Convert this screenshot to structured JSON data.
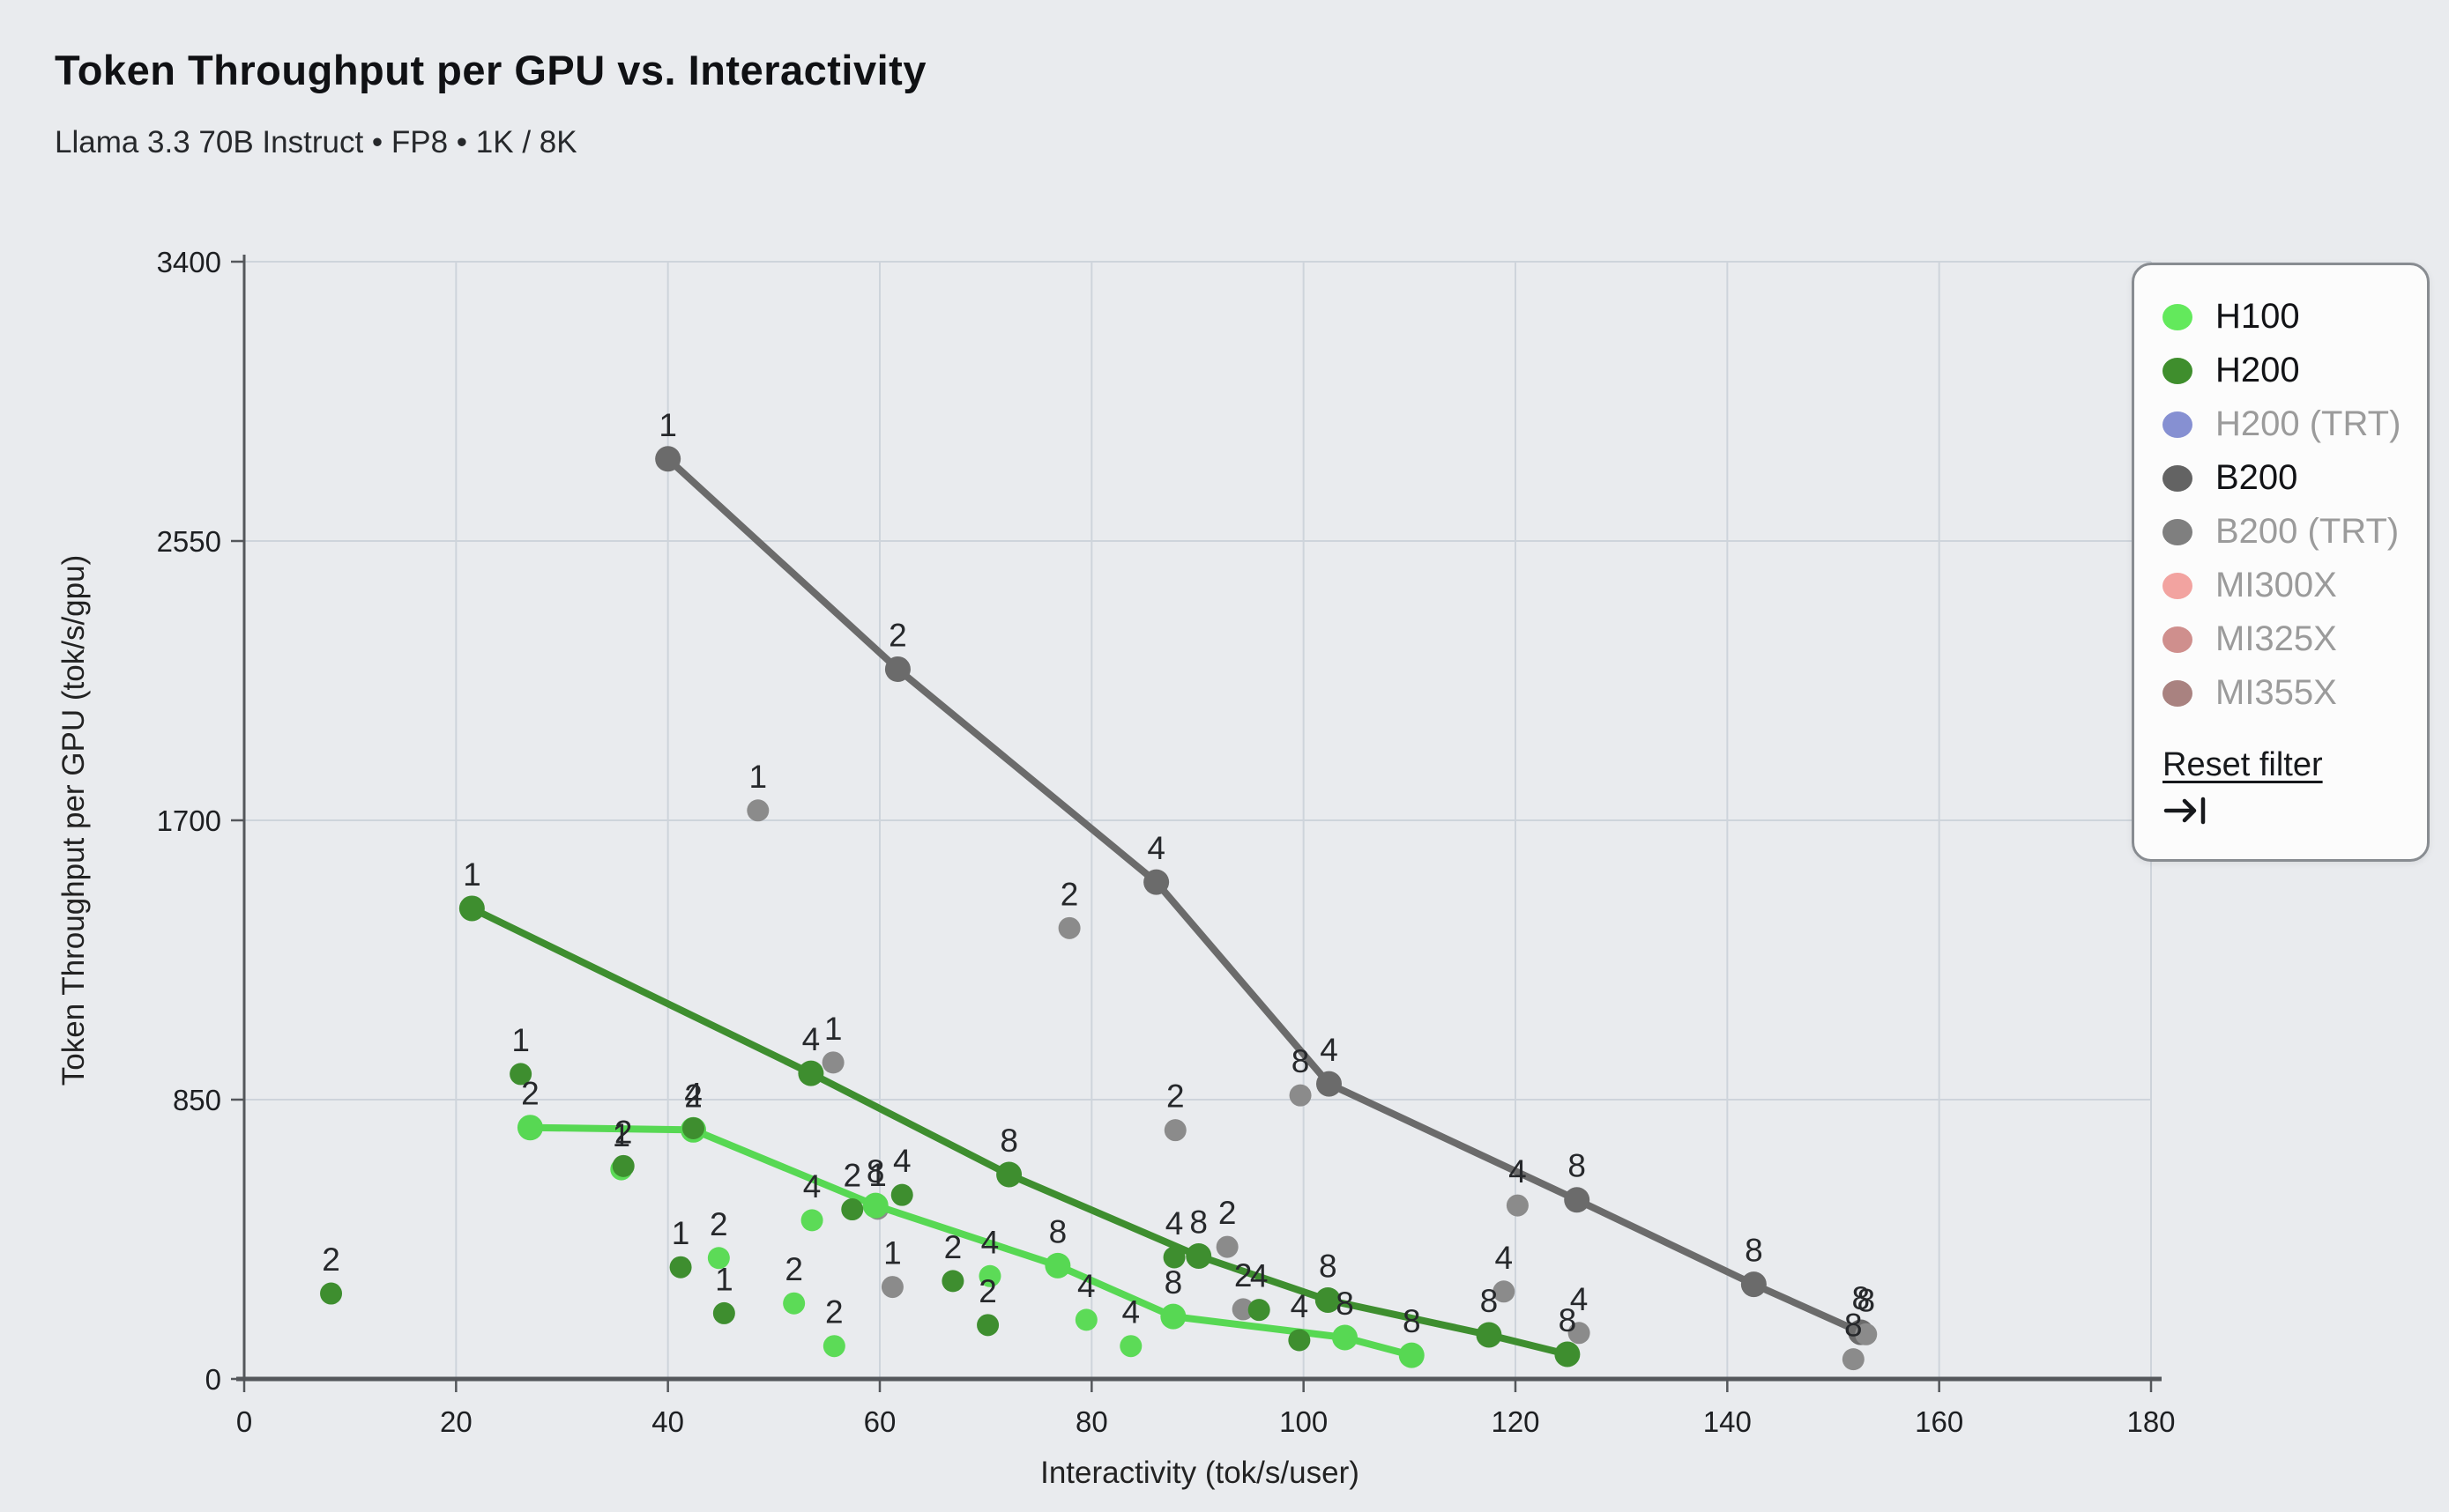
{
  "chart_data": {
    "type": "scatter",
    "title": "Token Throughput per GPU vs. Interactivity",
    "subtitle": "Llama 3.3 70B Instruct • FP8 • 1K / 8K",
    "xlabel": "Interactivity (tok/s/user)",
    "ylabel": "Token Throughput per GPU (tok/s/gpu)",
    "xlim": [
      0,
      180
    ],
    "ylim": [
      0,
      3400
    ],
    "xticks": [
      0,
      20,
      40,
      60,
      80,
      100,
      120,
      140,
      160,
      180
    ],
    "yticks": [
      0,
      850,
      1700,
      2550,
      3400
    ],
    "grid": true,
    "point_label_meaning": "number of GPUs",
    "series": [
      {
        "name": "B200",
        "line_color": "#6b6b6b",
        "point_color": "#8b8b8b",
        "pareto_line": [
          {
            "x": 40.0,
            "y": 2800,
            "label": "1"
          },
          {
            "x": 61.7,
            "y": 2160,
            "label": "2"
          },
          {
            "x": 86.1,
            "y": 1512,
            "label": "4"
          },
          {
            "x": 102.4,
            "y": 898,
            "label": "4"
          },
          {
            "x": 125.8,
            "y": 545,
            "label": "8"
          },
          {
            "x": 142.5,
            "y": 288,
            "label": "8"
          },
          {
            "x": 152.6,
            "y": 142,
            "label": "8"
          }
        ],
        "scatter": [
          {
            "x": 48.5,
            "y": 1730,
            "label": "1"
          },
          {
            "x": 55.6,
            "y": 963,
            "label": "1"
          },
          {
            "x": 59.8,
            "y": 518,
            "label": "1"
          },
          {
            "x": 61.2,
            "y": 280,
            "label": "1"
          },
          {
            "x": 77.9,
            "y": 1372,
            "label": "2"
          },
          {
            "x": 87.9,
            "y": 757,
            "label": "2"
          },
          {
            "x": 92.8,
            "y": 402,
            "label": "2"
          },
          {
            "x": 94.3,
            "y": 212,
            "label": "2"
          },
          {
            "x": 99.7,
            "y": 863,
            "label": "8"
          },
          {
            "x": 118.9,
            "y": 266,
            "label": "4"
          },
          {
            "x": 120.2,
            "y": 528,
            "label": "4"
          },
          {
            "x": 126.0,
            "y": 140,
            "label": "4"
          },
          {
            "x": 151.9,
            "y": 60,
            "label": "8"
          },
          {
            "x": 153.1,
            "y": 136,
            "label": "8"
          }
        ]
      },
      {
        "name": "H100",
        "line_color": "#57d853",
        "point_color": "#5cdb57",
        "pareto_line": [
          {
            "x": 27.0,
            "y": 765,
            "label": "2"
          },
          {
            "x": 42.4,
            "y": 758,
            "label": "2"
          },
          {
            "x": 59.6,
            "y": 528,
            "label": "8"
          },
          {
            "x": 76.8,
            "y": 345,
            "label": "8"
          },
          {
            "x": 87.7,
            "y": 190,
            "label": "8"
          },
          {
            "x": 103.9,
            "y": 126,
            "label": "8"
          },
          {
            "x": 110.2,
            "y": 72,
            "label": "8"
          }
        ],
        "scatter": [
          {
            "x": 35.6,
            "y": 638,
            "label": "1"
          },
          {
            "x": 44.8,
            "y": 368,
            "label": "2"
          },
          {
            "x": 51.9,
            "y": 230,
            "label": "2"
          },
          {
            "x": 53.6,
            "y": 483,
            "label": "4"
          },
          {
            "x": 55.7,
            "y": 100,
            "label": "2"
          },
          {
            "x": 70.4,
            "y": 313,
            "label": "4"
          },
          {
            "x": 79.5,
            "y": 180,
            "label": "4"
          },
          {
            "x": 83.7,
            "y": 100,
            "label": "4"
          }
        ]
      },
      {
        "name": "H200",
        "line_color": "#3e8e2f",
        "point_color": "#3e8e2f",
        "pareto_line": [
          {
            "x": 21.5,
            "y": 1432,
            "label": "1"
          },
          {
            "x": 53.5,
            "y": 930,
            "label": "4"
          },
          {
            "x": 72.2,
            "y": 622,
            "label": "8"
          },
          {
            "x": 90.1,
            "y": 374,
            "label": "8"
          },
          {
            "x": 102.3,
            "y": 240,
            "label": "8"
          },
          {
            "x": 117.5,
            "y": 134,
            "label": "8"
          },
          {
            "x": 124.9,
            "y": 75,
            "label": "8"
          }
        ],
        "scatter": [
          {
            "x": 8.2,
            "y": 260,
            "label": "2"
          },
          {
            "x": 26.1,
            "y": 928,
            "label": "1"
          },
          {
            "x": 35.8,
            "y": 648,
            "label": "2"
          },
          {
            "x": 41.2,
            "y": 340,
            "label": "1"
          },
          {
            "x": 42.4,
            "y": 763,
            "label": "4"
          },
          {
            "x": 45.3,
            "y": 200,
            "label": "1"
          },
          {
            "x": 57.4,
            "y": 516,
            "label": "2"
          },
          {
            "x": 62.1,
            "y": 560,
            "label": "4"
          },
          {
            "x": 66.9,
            "y": 298,
            "label": "2"
          },
          {
            "x": 70.2,
            "y": 164,
            "label": "2"
          },
          {
            "x": 87.8,
            "y": 370,
            "label": "4"
          },
          {
            "x": 95.8,
            "y": 210,
            "label": "4"
          },
          {
            "x": 99.6,
            "y": 118,
            "label": "4"
          }
        ]
      }
    ],
    "legend": {
      "position": "top-right",
      "items": [
        {
          "label": "H100",
          "color": "#63e95c",
          "active": true
        },
        {
          "label": "H200",
          "color": "#3f8e2d",
          "active": true
        },
        {
          "label": "H200 (TRT)",
          "color": "#8690d2",
          "active": false
        },
        {
          "label": "B200",
          "color": "#636363",
          "active": true
        },
        {
          "label": "B200 (TRT)",
          "color": "#7f7f7f",
          "active": false
        },
        {
          "label": "MI300X",
          "color": "#f2a3a0",
          "active": false
        },
        {
          "label": "MI325X",
          "color": "#cf8f8d",
          "active": false
        },
        {
          "label": "MI355X",
          "color": "#a98280",
          "active": false
        }
      ],
      "reset_label": "Reset filter"
    }
  }
}
